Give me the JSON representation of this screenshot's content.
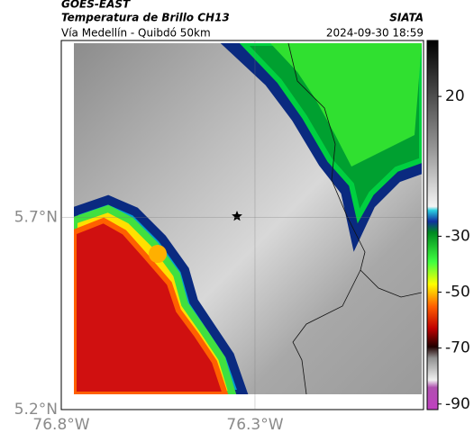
{
  "header": {
    "title": "GOES-EAST",
    "subtitle": "Temperatura de Brillo CH13",
    "route": "Vía Medellín - Quibdó 50km",
    "source": "SIATA",
    "datetime": "2024-09-30 18:59"
  },
  "map": {
    "xlim": [
      -76.8,
      -75.865
    ],
    "ylim": [
      5.2,
      6.16
    ],
    "xticks": [
      {
        "value": -76.8,
        "label": "76.8°W"
      },
      {
        "value": -76.3,
        "label": "76.3°W"
      }
    ],
    "yticks": [
      {
        "value": 5.7,
        "label": "5.7°N"
      },
      {
        "value": 5.2,
        "label": "5.2°N"
      }
    ]
  },
  "colorbar": {
    "lim": [
      -92,
      40
    ],
    "ticks": [
      20,
      -30,
      -50,
      -70,
      -90
    ]
  }
}
